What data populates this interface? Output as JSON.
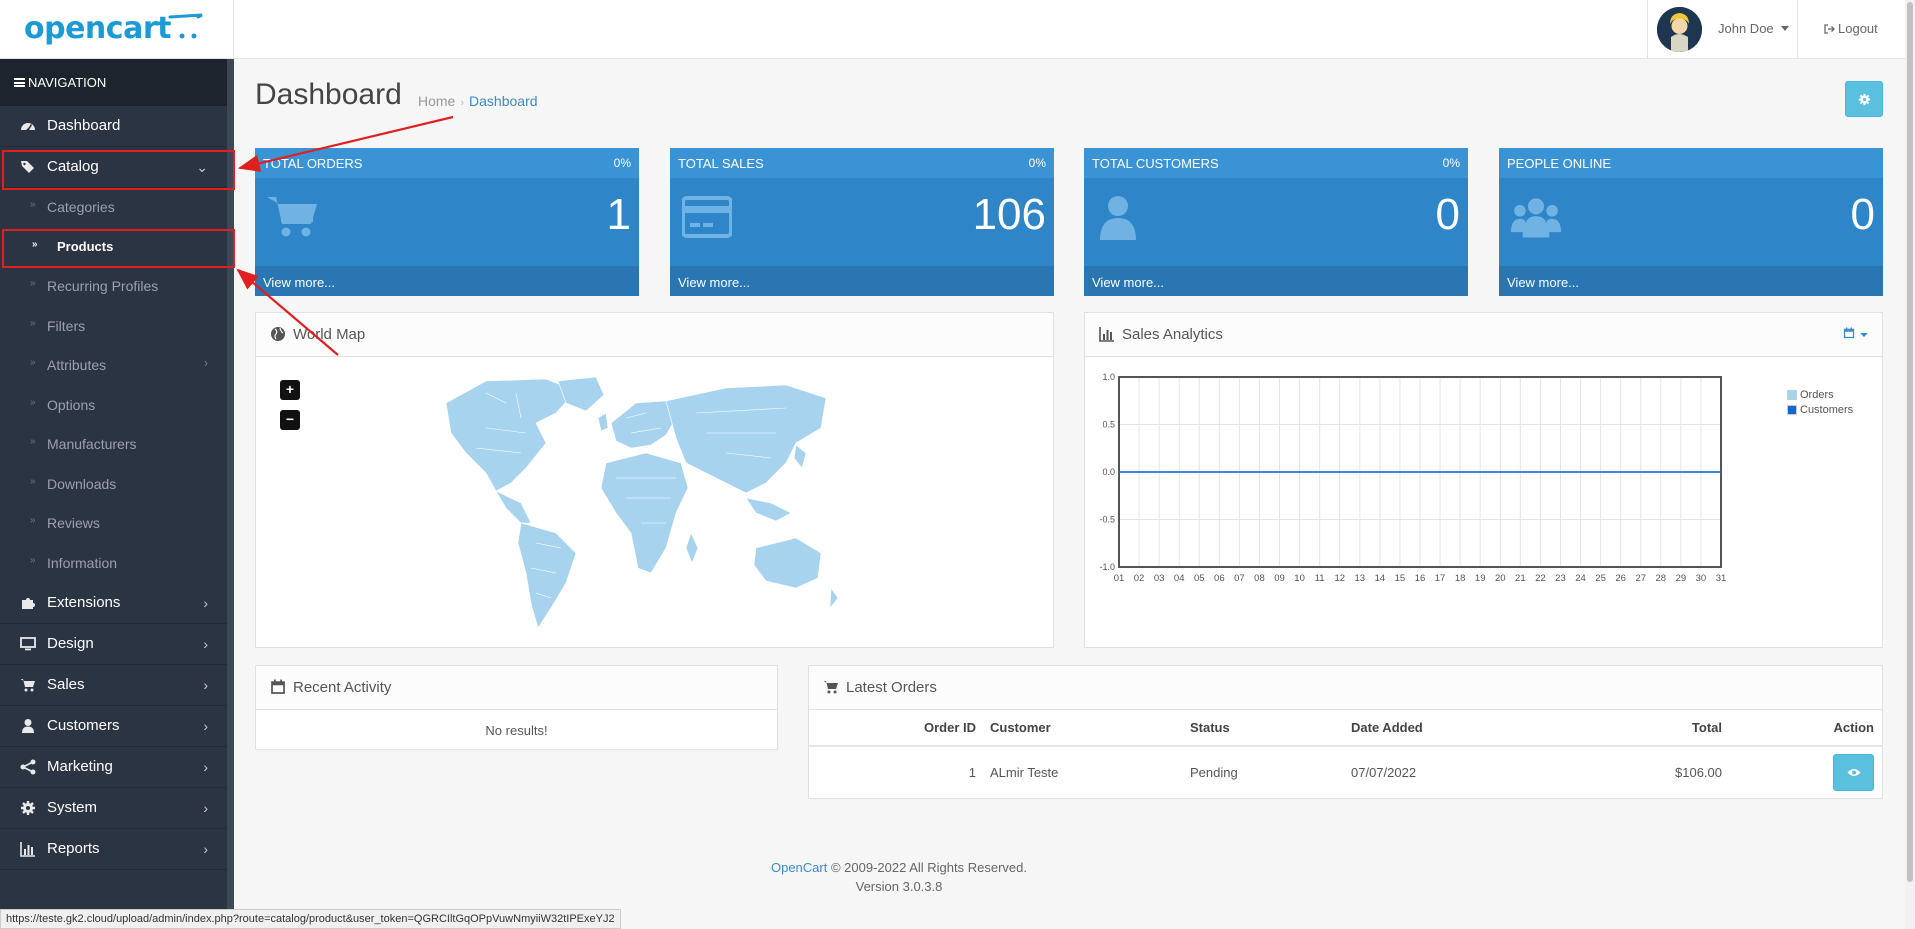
{
  "header": {
    "logo_text": "opencart",
    "user_name": "John Doe",
    "logout_label": "Logout"
  },
  "sidebar": {
    "nav_title": "NAVIGATION",
    "items": [
      {
        "label": "Dashboard",
        "icon": "dashboard-icon"
      },
      {
        "label": "Catalog",
        "icon": "tags-icon",
        "expanded": true
      },
      {
        "label": "Extensions",
        "icon": "puzzle-icon"
      },
      {
        "label": "Design",
        "icon": "monitor-icon"
      },
      {
        "label": "Sales",
        "icon": "cart-icon"
      },
      {
        "label": "Customers",
        "icon": "user-icon"
      },
      {
        "label": "Marketing",
        "icon": "share-icon"
      },
      {
        "label": "System",
        "icon": "gear-icon"
      },
      {
        "label": "Reports",
        "icon": "bar-chart-icon"
      }
    ],
    "catalog_sub": [
      {
        "label": "Categories"
      },
      {
        "label": "Products",
        "active": true
      },
      {
        "label": "Recurring Profiles"
      },
      {
        "label": "Filters"
      },
      {
        "label": "Attributes",
        "has_children": true
      },
      {
        "label": "Options"
      },
      {
        "label": "Manufacturers"
      },
      {
        "label": "Downloads"
      },
      {
        "label": "Reviews"
      },
      {
        "label": "Information"
      }
    ]
  },
  "page": {
    "title": "Dashboard",
    "breadcrumb": {
      "home": "Home",
      "current": "Dashboard"
    }
  },
  "tiles": [
    {
      "title": "TOTAL ORDERS",
      "percent": "0%",
      "value": "1",
      "link": "View more...",
      "icon": "shopping-cart-icon"
    },
    {
      "title": "TOTAL SALES",
      "percent": "0%",
      "value": "106",
      "link": "View more...",
      "icon": "credit-card-icon"
    },
    {
      "title": "TOTAL CUSTOMERS",
      "percent": "0%",
      "value": "0",
      "link": "View more...",
      "icon": "user-icon"
    },
    {
      "title": "PEOPLE ONLINE",
      "percent": "",
      "value": "0",
      "link": "View more...",
      "icon": "users-icon"
    }
  ],
  "world_map": {
    "title": "World Map",
    "zoom_in": "+",
    "zoom_out": "−"
  },
  "sales_analytics": {
    "title": "Sales Analytics"
  },
  "chart_data": {
    "type": "line",
    "x": [
      "01",
      "02",
      "03",
      "04",
      "05",
      "06",
      "07",
      "08",
      "09",
      "10",
      "11",
      "12",
      "13",
      "14",
      "15",
      "16",
      "17",
      "18",
      "19",
      "20",
      "21",
      "22",
      "23",
      "24",
      "25",
      "26",
      "27",
      "28",
      "29",
      "30",
      "31"
    ],
    "series": [
      {
        "name": "Orders",
        "values": [
          0,
          0,
          0,
          0,
          0,
          0,
          0,
          0,
          0,
          0,
          0,
          0,
          0,
          0,
          0,
          0,
          0,
          0,
          0,
          0,
          0,
          0,
          0,
          0,
          0,
          0,
          0,
          0,
          0,
          0,
          0
        ],
        "color": "#9fd5f1"
      },
      {
        "name": "Customers",
        "values": [
          0,
          0,
          0,
          0,
          0,
          0,
          0,
          0,
          0,
          0,
          0,
          0,
          0,
          0,
          0,
          0,
          0,
          0,
          0,
          0,
          0,
          0,
          0,
          0,
          0,
          0,
          0,
          0,
          0,
          0,
          0
        ],
        "color": "#1065d2"
      }
    ],
    "yticks": [
      "1.0",
      "0.5",
      "0.0",
      "-0.5",
      "-1.0"
    ],
    "ylim": [
      -1,
      1
    ],
    "grid": true,
    "legend": "top-right"
  },
  "recent_activity": {
    "title": "Recent Activity",
    "empty": "No results!"
  },
  "latest_orders": {
    "title": "Latest Orders",
    "columns": {
      "order_id": "Order ID",
      "customer": "Customer",
      "status": "Status",
      "date_added": "Date Added",
      "total": "Total",
      "action": "Action"
    },
    "rows": [
      {
        "order_id": "1",
        "customer": "ALmir Teste",
        "status": "Pending",
        "date_added": "07/07/2022",
        "total": "$106.00"
      }
    ]
  },
  "footer": {
    "brand": "OpenCart",
    "copyright": " © 2009-2022 All Rights Reserved.",
    "version": "Version 3.0.3.8"
  },
  "status_url": "https://teste.gk2.cloud/upload/admin/index.php?route=catalog/product&user_token=QGRCIltGqOPpVuwNmyiiW32tIPExeYJ2",
  "colors": {
    "accent": "#1e91cf",
    "tile": "#2e86c8",
    "sidebar": "#2b3443",
    "highlight": "#e02020"
  }
}
